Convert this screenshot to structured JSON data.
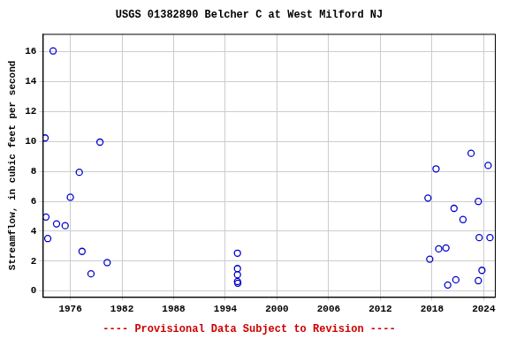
{
  "chart_data": {
    "type": "scatter",
    "title": "USGS 01382890 Belcher C at West Milford NJ",
    "y_label": "Streamflow, in cubic feet per second",
    "annotations": [
      "---- Provisional Data Subject to Revision ----"
    ],
    "x": [
      1973.07,
      1973.17,
      1973.38,
      1974.0,
      1974.4,
      1975.4,
      1976.0,
      1977.04,
      1977.36,
      1978.4,
      1979.44,
      1980.28,
      1995.41,
      1995.41,
      1995.41,
      1995.41,
      1995.45,
      2017.53,
      2017.74,
      2018.47,
      2018.78,
      2019.62,
      2019.83,
      2020.56,
      2020.77,
      2021.6,
      2022.54,
      2023.38,
      2023.48,
      2023.38,
      2023.8,
      2024.52,
      2024.73
    ],
    "values": [
      10.24,
      4.95,
      3.51,
      16.06,
      4.49,
      4.37,
      6.27,
      7.94,
      2.65,
      1.15,
      9.96,
      1.9,
      2.53,
      1.5,
      1.09,
      0.63,
      0.52,
      6.22,
      2.13,
      8.17,
      2.82,
      2.88,
      0.4,
      5.53,
      0.75,
      4.78,
      9.21,
      5.99,
      3.57,
      0.69,
      1.38,
      8.4,
      3.57
    ],
    "color": "#0000cc",
    "marker": "circle",
    "xlim": [
      1972.8,
      2025.3
    ],
    "xticks": [
      1976,
      1982,
      1988,
      1994,
      2000,
      2006,
      2012,
      2018,
      2024
    ],
    "ylim": [
      -0.4,
      17.2
    ],
    "yticks": [
      0,
      2,
      4,
      6,
      8,
      10,
      12,
      14,
      16
    ],
    "grid": true
  }
}
